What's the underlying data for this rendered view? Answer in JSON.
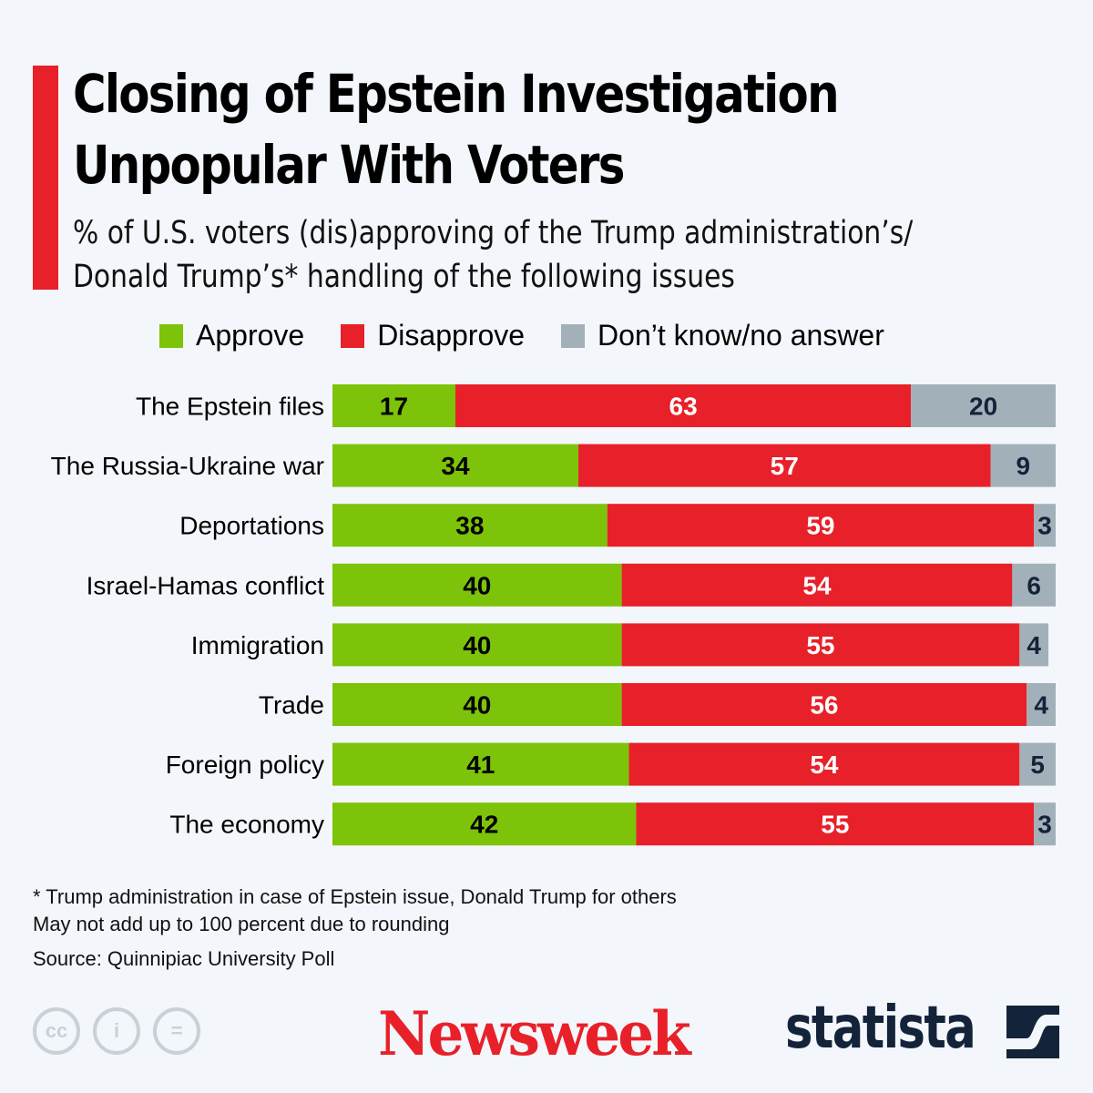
{
  "title_lines": [
    "Closing of Epstein Investigation",
    "Unpopular With Voters"
  ],
  "subtitle_lines": [
    "% of U.S. voters (dis)approving of the Trump administration’s/",
    "Donald Trump’s* handling of the following issues"
  ],
  "notes": [
    "* Trump administration in case of Epstein issue, Donald Trump for others",
    "May not add up to 100 percent due to rounding"
  ],
  "source": "Source: Quinnipiac University Poll",
  "logos": {
    "newsweek": "Newsweek",
    "statista": "statista",
    "license_icons": [
      "cc-icon",
      "attribution-icon",
      "no-derivatives-icon"
    ]
  },
  "chart_data": {
    "type": "bar",
    "orientation": "horizontal",
    "stacked": true,
    "categories": [
      "The Epstein files",
      "The Russia-Ukraine war",
      "Deportations",
      "Israel-Hamas conflict",
      "Immigration",
      "Trade",
      "Foreign policy",
      "The economy"
    ],
    "series": [
      {
        "name": "Approve",
        "color": "#7dc30a",
        "label_color": "#000000",
        "values": [
          17,
          34,
          38,
          40,
          40,
          40,
          41,
          42
        ]
      },
      {
        "name": "Disapprove",
        "color": "#e8202a",
        "label_color": "#ffffff",
        "values": [
          63,
          57,
          59,
          54,
          55,
          56,
          54,
          55
        ]
      },
      {
        "name": "Don’t know/no answer",
        "color": "#a2b0b9",
        "label_color": "#13233a",
        "values": [
          20,
          9,
          3,
          6,
          4,
          4,
          5,
          3
        ]
      }
    ],
    "xlim": [
      0,
      100
    ],
    "legend": "top",
    "grid": false
  }
}
